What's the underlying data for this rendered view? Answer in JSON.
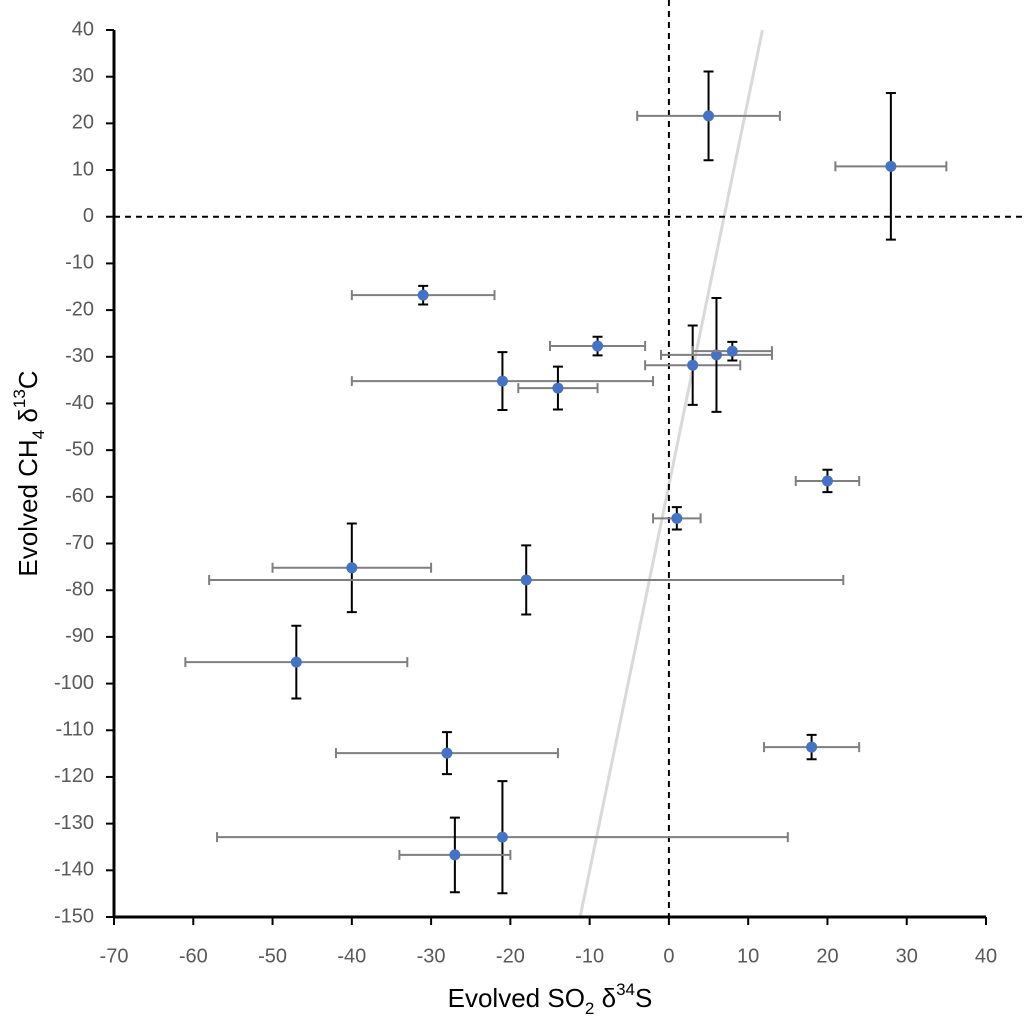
{
  "chart_data": {
    "type": "scatter",
    "x": [
      5,
      28,
      -31,
      -9,
      -21,
      -14,
      3,
      6,
      8,
      20,
      1,
      -40,
      -18,
      -47,
      -28,
      18,
      -21,
      -27
    ],
    "y": [
      21.6,
      10.8,
      -16.8,
      -27.7,
      -35.2,
      -36.7,
      -31.8,
      -29.6,
      -28.8,
      -56.6,
      -64.6,
      -75.2,
      -77.8,
      -95.4,
      -114.9,
      -113.6,
      -132.9,
      -136.7
    ],
    "xerr": [
      9,
      7,
      9,
      6,
      19,
      5,
      6,
      7,
      5,
      4,
      3,
      10,
      40,
      14,
      14,
      6,
      36,
      7
    ],
    "yerr": [
      9.5,
      15.7,
      2,
      2,
      6.2,
      4.6,
      8.5,
      12.2,
      2,
      2.4,
      2.4,
      9.5,
      7.4,
      7.8,
      4.5,
      2.6,
      12,
      8
    ],
    "color": "#4472c4",
    "yerr_color": "#000000",
    "xerr_color": "#7f7f7f",
    "trend_line": {
      "x": [
        -11.2,
        11.8
      ],
      "y": [
        -150,
        40
      ],
      "color": "#d9d9d9"
    },
    "reference_lines": {
      "x": 0,
      "y": 0
    },
    "xlim": [
      -70,
      40
    ],
    "ylim": [
      -150,
      40
    ],
    "xticks": [
      -70,
      -60,
      -50,
      -40,
      -30,
      -20,
      -10,
      0,
      10,
      20,
      30,
      40
    ],
    "yticks": [
      40,
      30,
      20,
      10,
      0,
      -10,
      -20,
      -30,
      -40,
      -50,
      -60,
      -70,
      -80,
      -90,
      -100,
      -110,
      -120,
      -130,
      -140,
      -150
    ],
    "xlabel": [
      {
        "text": "Evolved SO"
      },
      {
        "text": "2",
        "shift": "sub"
      },
      {
        "text": " δ"
      },
      {
        "text": "34",
        "shift": "super"
      },
      {
        "text": "S"
      }
    ],
    "ylabel": [
      {
        "text": "Evolved CH"
      },
      {
        "text": "4",
        "shift": "sub"
      },
      {
        "text": " δ"
      },
      {
        "text": "13",
        "shift": "super"
      },
      {
        "text": "C"
      }
    ],
    "grid": false
  }
}
